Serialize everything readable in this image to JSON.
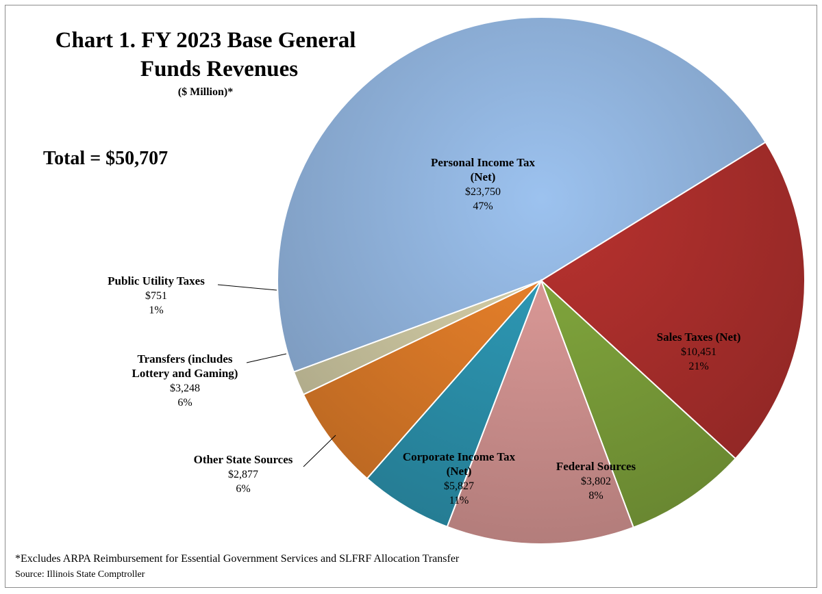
{
  "title": {
    "line1": "Chart 1.  FY 2023 Base General",
    "line2": "Funds Revenues",
    "subtitle": "($ Million)*"
  },
  "total_label": "Total = $50,707",
  "footnote": "*Excludes ARPA Reimbursement for Essential Government Services and SLFRF Allocation Transfer",
  "source": "Source:  Illinois State Comptroller",
  "chart_data": {
    "type": "pie",
    "title": "Chart 1.  FY 2023 Base General Funds Revenues",
    "subtitle": "($ Million)*",
    "total": 50707,
    "slices": [
      {
        "key": "pit",
        "name_lines": [
          "Personal Income Tax",
          "(Net)"
        ],
        "value": 23750,
        "value_label": "$23,750",
        "pct_label": "47%",
        "color": "#9cc2ef"
      },
      {
        "key": "sales",
        "name_lines": [
          "Sales Taxes (Net)"
        ],
        "value": 10451,
        "value_label": "$10,451",
        "pct_label": "21%",
        "color": "#b9322f"
      },
      {
        "key": "federal",
        "name_lines": [
          "Federal Sources"
        ],
        "value": 3802,
        "value_label": "$3,802",
        "pct_label": "8%",
        "color": "#86ad3f"
      },
      {
        "key": "cit",
        "name_lines": [
          "Corporate Income Tax",
          "(Net)"
        ],
        "value": 5827,
        "value_label": "$5,827",
        "pct_label": "11%",
        "color": "#e5a09e"
      },
      {
        "key": "other_state",
        "name_lines": [
          "Other State Sources"
        ],
        "value": 2877,
        "value_label": "$2,877",
        "pct_label": "6%",
        "color": "#2f9fbd"
      },
      {
        "key": "transfers",
        "name_lines": [
          "Transfers (includes",
          "Lottery and Gaming)"
        ],
        "value": 3248,
        "value_label": "$3,248",
        "pct_label": "6%",
        "color": "#f0852c"
      },
      {
        "key": "utility",
        "name_lines": [
          "Public Utility Taxes"
        ],
        "value": 751,
        "value_label": "$751",
        "pct_label": "1%",
        "color": "#ddd6ad"
      }
    ]
  }
}
